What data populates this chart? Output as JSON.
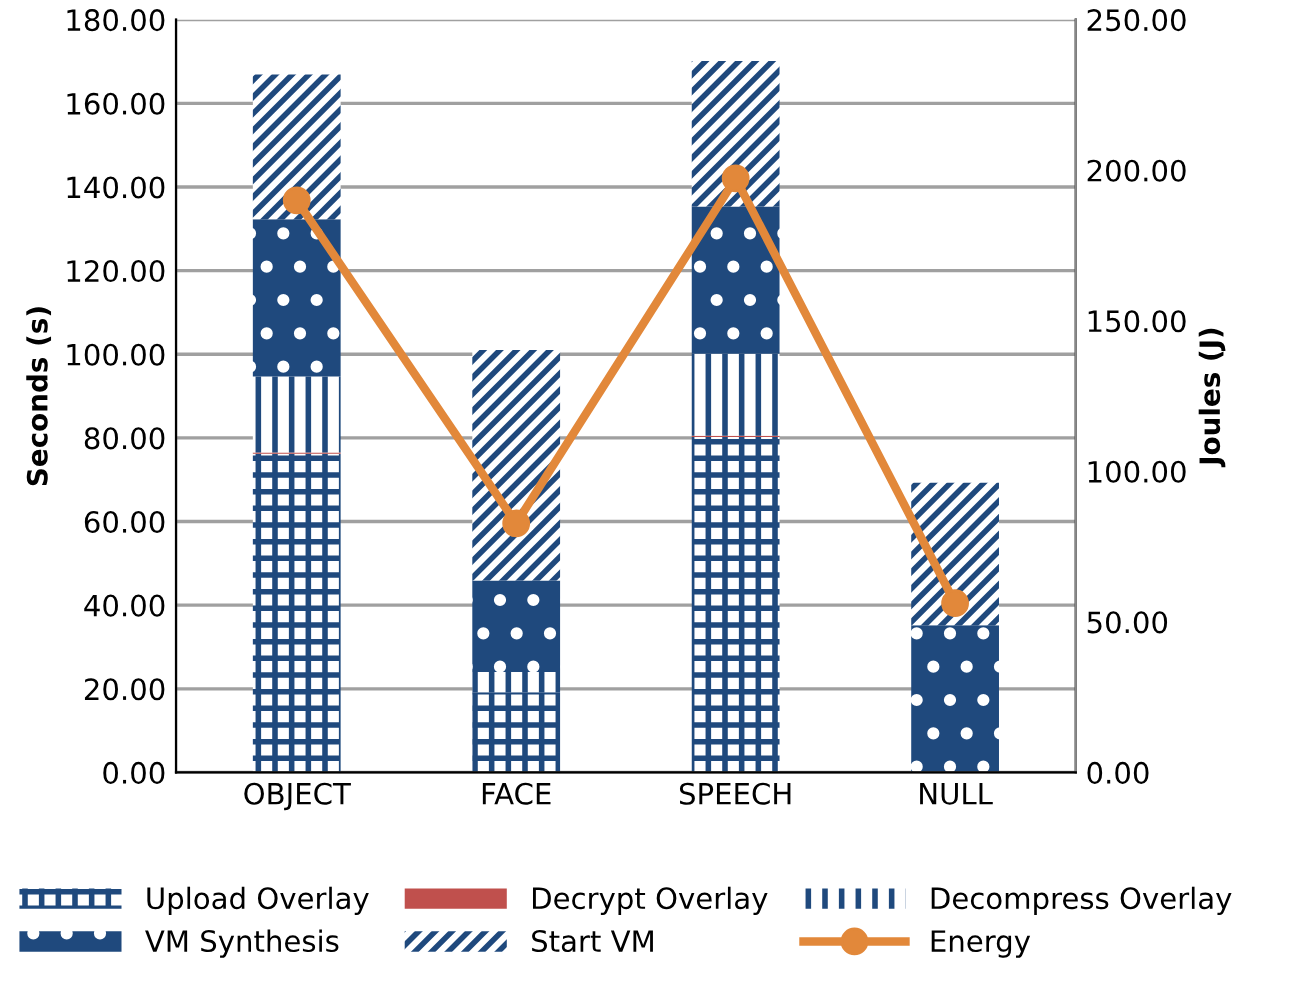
{
  "chart_data": {
    "type": "bar",
    "stacked": true,
    "ylabel": "Seconds (s)",
    "y2label": "Joules (J)",
    "categories": [
      "OBJECT",
      "FACE",
      "SPEECH",
      "NULL"
    ],
    "series": [
      {
        "name": "Upload Overlay",
        "color": "#1f497d",
        "values": [
          76.2,
          19.2,
          80.2,
          0
        ]
      },
      {
        "name": "Decrypt Overlay",
        "color": "#c0504d",
        "values": [
          0.3,
          0,
          0.3,
          0
        ]
      },
      {
        "name": "Decompress Overlay",
        "color": "#1f497d",
        "values": [
          18.2,
          4.8,
          19.6,
          0
        ]
      },
      {
        "name": "VM Synthesis",
        "color": "#1f497d",
        "values": [
          37.6,
          21.9,
          35.2,
          35.2
        ]
      },
      {
        "name": "Start VM",
        "color": "#1f497d",
        "values": [
          34.6,
          55.1,
          34.8,
          34.1
        ]
      },
      {
        "name": "Energy",
        "type": "line",
        "axis": "y2",
        "color": "#e2883a",
        "marker": "circle",
        "values": [
          190,
          82.7,
          197.3,
          56.2
        ]
      }
    ],
    "ylim": [
      0,
      180
    ],
    "yticks": [
      {
        "value": 0,
        "label": "0.00"
      },
      {
        "value": 20,
        "label": "20.00"
      },
      {
        "value": 40,
        "label": "40.00"
      },
      {
        "value": 60,
        "label": "60.00"
      },
      {
        "value": 80,
        "label": "80.00"
      },
      {
        "value": 100,
        "label": "100.00"
      },
      {
        "value": 120,
        "label": "120.00"
      },
      {
        "value": 140,
        "label": "140.00"
      },
      {
        "value": 160,
        "label": "160.00"
      },
      {
        "value": 180,
        "label": "180.00"
      }
    ],
    "y2lim": [
      0,
      250
    ],
    "y2ticks": [
      {
        "value": 0,
        "label": "0.00"
      },
      {
        "value": 50,
        "label": "50.00"
      },
      {
        "value": 100,
        "label": "100.00"
      },
      {
        "value": 150,
        "label": "150.00"
      },
      {
        "value": 200,
        "label": "200.00"
      },
      {
        "value": 250,
        "label": "250.00"
      }
    ],
    "grid": "y",
    "legend": "bottom"
  }
}
